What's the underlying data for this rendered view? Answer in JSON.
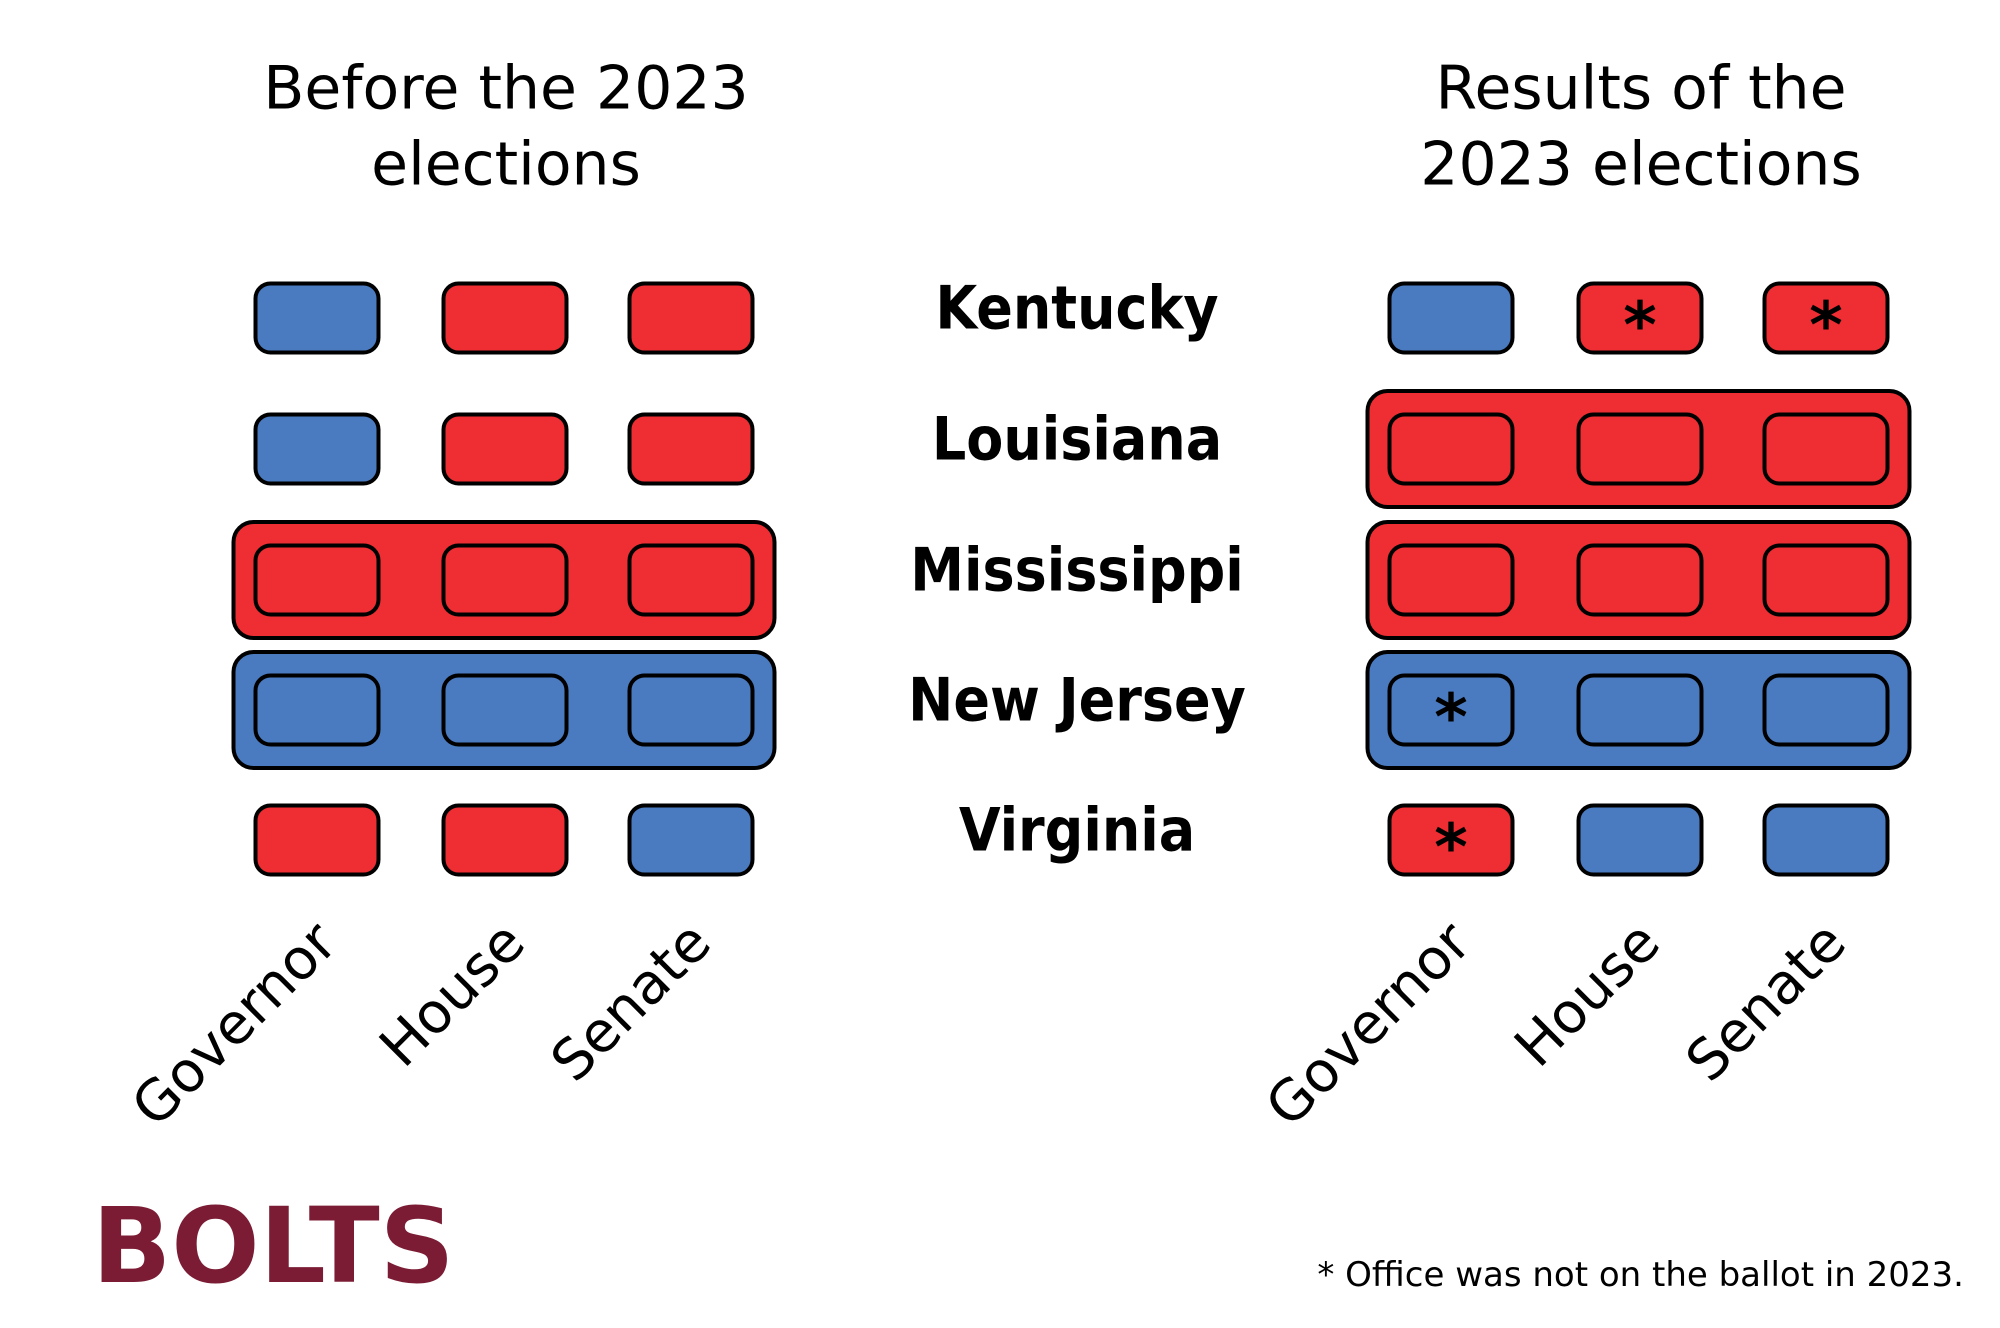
{
  "panels": [
    {
      "title_lines": [
        "Before the 2023",
        "elections"
      ],
      "rows": [
        {
          "trifecta": false,
          "cells": [
            {
              "party": "D",
              "off_ballot": false
            },
            {
              "party": "R",
              "off_ballot": false
            },
            {
              "party": "R",
              "off_ballot": false
            }
          ]
        },
        {
          "trifecta": false,
          "cells": [
            {
              "party": "D",
              "off_ballot": false
            },
            {
              "party": "R",
              "off_ballot": false
            },
            {
              "party": "R",
              "off_ballot": false
            }
          ]
        },
        {
          "trifecta": true,
          "cells": [
            {
              "party": "R",
              "off_ballot": false
            },
            {
              "party": "R",
              "off_ballot": false
            },
            {
              "party": "R",
              "off_ballot": false
            }
          ]
        },
        {
          "trifecta": true,
          "cells": [
            {
              "party": "D",
              "off_ballot": false
            },
            {
              "party": "D",
              "off_ballot": false
            },
            {
              "party": "D",
              "off_ballot": false
            }
          ]
        },
        {
          "trifecta": false,
          "cells": [
            {
              "party": "R",
              "off_ballot": false
            },
            {
              "party": "R",
              "off_ballot": false
            },
            {
              "party": "D",
              "off_ballot": false
            }
          ]
        }
      ]
    },
    {
      "title_lines": [
        "Results of the",
        "2023 elections"
      ],
      "rows": [
        {
          "trifecta": false,
          "cells": [
            {
              "party": "D",
              "off_ballot": false
            },
            {
              "party": "R",
              "off_ballot": true
            },
            {
              "party": "R",
              "off_ballot": true
            }
          ]
        },
        {
          "trifecta": true,
          "cells": [
            {
              "party": "R",
              "off_ballot": false
            },
            {
              "party": "R",
              "off_ballot": false
            },
            {
              "party": "R",
              "off_ballot": false
            }
          ]
        },
        {
          "trifecta": true,
          "cells": [
            {
              "party": "R",
              "off_ballot": false
            },
            {
              "party": "R",
              "off_ballot": false
            },
            {
              "party": "R",
              "off_ballot": false
            }
          ]
        },
        {
          "trifecta": true,
          "cells": [
            {
              "party": "D",
              "off_ballot": true
            },
            {
              "party": "D",
              "off_ballot": false
            },
            {
              "party": "D",
              "off_ballot": false
            }
          ]
        },
        {
          "trifecta": false,
          "cells": [
            {
              "party": "R",
              "off_ballot": true
            },
            {
              "party": "D",
              "off_ballot": false
            },
            {
              "party": "D",
              "off_ballot": false
            }
          ]
        }
      ]
    }
  ],
  "states": [
    "Kentucky",
    "Louisiana",
    "Mississippi",
    "New Jersey",
    "Virginia"
  ],
  "offices": [
    "Governor",
    "House",
    "Senate"
  ],
  "party_colors": {
    "D": "#4a7bc0",
    "R": "#ee2e32"
  },
  "note_marker": "*",
  "footnote": "* Office was not on the ballot in 2023.",
  "logo": "BOLTS"
}
